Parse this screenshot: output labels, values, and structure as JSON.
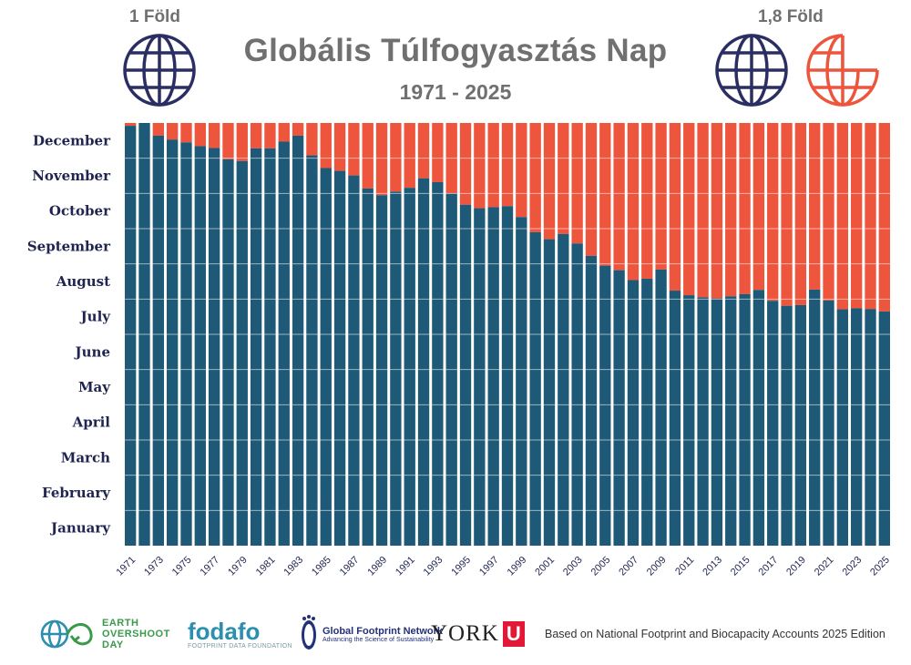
{
  "header": {
    "title": "Globális Túlfogyasztás Nap",
    "subtitle": "1971 - 2025",
    "left_label": "1 Föld",
    "right_label": "1,8 Föld"
  },
  "icons": {
    "left": "globe-icon",
    "right_full": "globe-icon",
    "right_partial": "partial-globe-icon"
  },
  "colors": {
    "before_overshoot": "#1e5a78",
    "after_overshoot": "#ee553d",
    "globe_navy": "#2b2e62",
    "globe_orange": "#ee553d",
    "month_label": "#1f2550"
  },
  "chart_data": {
    "type": "bar",
    "stacked": true,
    "x": [
      1971,
      1972,
      1973,
      1974,
      1975,
      1976,
      1977,
      1978,
      1979,
      1980,
      1981,
      1982,
      1983,
      1984,
      1985,
      1986,
      1987,
      1988,
      1989,
      1990,
      1991,
      1992,
      1993,
      1994,
      1995,
      1996,
      1997,
      1998,
      1999,
      2000,
      2001,
      2002,
      2003,
      2004,
      2005,
      2006,
      2007,
      2008,
      2009,
      2010,
      2011,
      2012,
      2013,
      2014,
      2015,
      2016,
      2017,
      2018,
      2019,
      2020,
      2021,
      2022,
      2023,
      2024,
      2025
    ],
    "x_tick_labels": [
      "1971",
      "1973",
      "1975",
      "1977",
      "1979",
      "1981",
      "1983",
      "1985",
      "1987",
      "1989",
      "1991",
      "1993",
      "1995",
      "1997",
      "1999",
      "2001",
      "2003",
      "2005",
      "2007",
      "2009",
      "2011",
      "2013",
      "2015",
      "2017",
      "2019",
      "2021",
      "2023",
      "2025"
    ],
    "y_tick_labels": [
      "January",
      "February",
      "March",
      "April",
      "May",
      "June",
      "July",
      "August",
      "September",
      "October",
      "November",
      "December"
    ],
    "ylim": [
      0,
      12
    ],
    "overshoot_month_value": [
      11.92,
      12.0,
      11.64,
      11.53,
      11.45,
      11.34,
      11.29,
      10.97,
      10.92,
      11.28,
      11.28,
      11.47,
      11.64,
      11.08,
      10.72,
      10.64,
      10.51,
      10.14,
      9.95,
      10.05,
      10.16,
      10.43,
      10.32,
      10.0,
      9.68,
      9.58,
      9.61,
      9.64,
      9.33,
      8.9,
      8.7,
      8.85,
      8.58,
      8.23,
      7.95,
      7.82,
      7.54,
      7.58,
      7.84,
      7.24,
      7.11,
      7.05,
      7.02,
      7.08,
      7.14,
      7.26,
      6.95,
      6.81,
      6.83,
      7.27,
      6.96,
      6.71,
      6.74,
      6.72,
      6.65
    ],
    "series": [
      {
        "role": "before_overshoot",
        "color": "#1e5a78"
      },
      {
        "role": "after_overshoot",
        "color": "#ee553d"
      }
    ]
  },
  "footer": {
    "eo_line1": "EARTH",
    "eo_line2": "OVERSHOOT",
    "eo_line3": "DAY",
    "fodafo": "fodafo",
    "fodafo_sub": "FOOTPRINT DATA FOUNDATION",
    "gfn_name": "Global Footprint Network",
    "gfn_tag": "Advancing the Science of Sustainability",
    "york": "YORK",
    "york_mark": "U",
    "based_on": "Based on National Footprint and Biocapacity Accounts 2025 Edition"
  }
}
